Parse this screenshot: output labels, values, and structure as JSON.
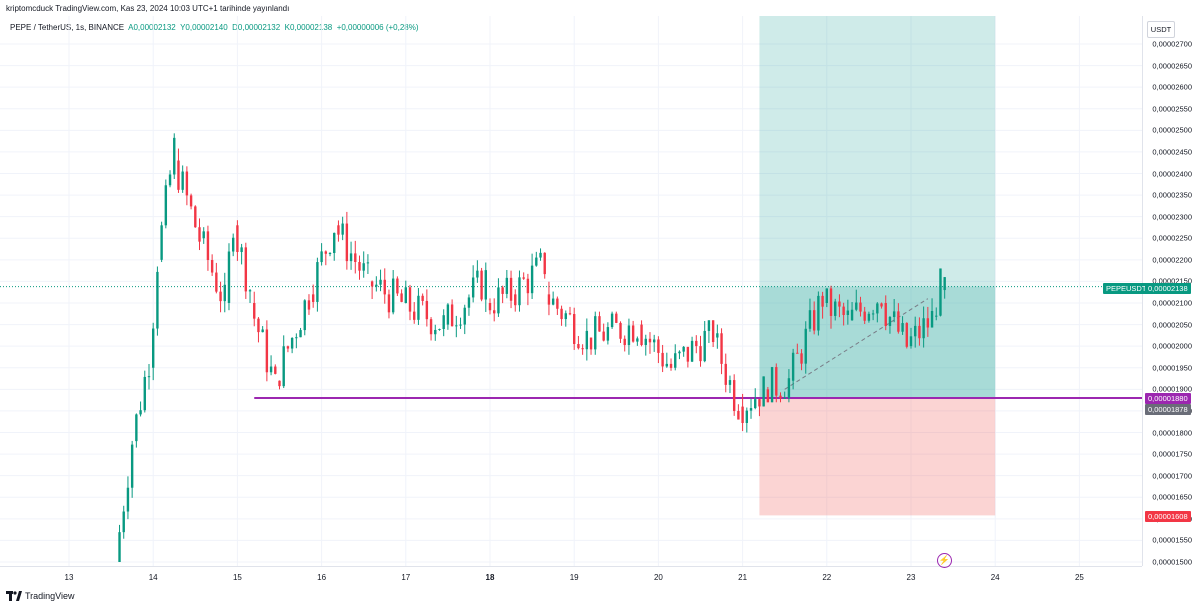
{
  "header": {
    "publish_line": "kriptomcduck TradingView.com, Kas 23, 2024 10:03 UTC+1 tarihinde yayınlandı"
  },
  "legend": {
    "symbol": "PEPE / TetherUS, 1s, BINANCE",
    "open": "A0,00002132",
    "high": "Y0,00002140",
    "low": "D0,00002132",
    "close": "K0,00002138",
    "change": "+0,00000006 (+0,28%)"
  },
  "price_axis": {
    "currency": "USDT",
    "ticks": [
      "0,00002700",
      "0,00002650",
      "0,00002600",
      "0,00002550",
      "0,00002500",
      "0,00002450",
      "0,00002400",
      "0,00002350",
      "0,00002300",
      "0,00002250",
      "0,00002200",
      "0,00002150",
      "0,00002100",
      "0,00002050",
      "0,00002000",
      "0,00001950",
      "0,00001900",
      "0,00001850",
      "0,00001800",
      "0,00001750",
      "0,00001700",
      "0,00001650",
      "0,00001600",
      "0,00001550",
      "0,00001500"
    ],
    "labels": {
      "symbol_tag": "PEPEUSDT",
      "current_price": "0,00002138",
      "line_price": "0,00001880",
      "cursor_price": "0,00001878",
      "stop_price": "0,00001608"
    }
  },
  "time_axis": {
    "labels": [
      "13",
      "14",
      "15",
      "16",
      "17",
      "18",
      "19",
      "20",
      "21",
      "22",
      "23",
      "24",
      "25"
    ],
    "bold_label": "18"
  },
  "colors": {
    "up": "#089981",
    "down": "#f23645",
    "profit_zone": "#26a69a",
    "loss_zone": "#ef5350",
    "support_line": "#9c27b0",
    "current_price": "#089981"
  },
  "footer": {
    "brand": "TradingView"
  },
  "chart_data": {
    "type": "candlestick",
    "symbol": "PEPE / TetherUS",
    "interval": "1s",
    "exchange": "BINANCE",
    "x_range_days": [
      "12",
      "25"
    ],
    "ylim": [
      1.5e-05,
      2.7e-05
    ],
    "last_close": 2.138e-05,
    "support_level": 1.88e-05,
    "position": {
      "entry": 2.138e-05,
      "target": 2.7e-05,
      "stop": 1.608e-05,
      "start_day": 21.2,
      "end_day": 24.0
    },
    "series": [
      {
        "day": 13.6,
        "open": 1.5e-05,
        "close": 1.78e-05,
        "high": 1.8e-05,
        "low": 1.5e-05
      },
      {
        "day": 13.8,
        "open": 1.78e-05,
        "close": 1.98e-05,
        "high": 2e-05,
        "low": 1.76e-05
      },
      {
        "day": 14.0,
        "open": 1.95e-05,
        "close": 2.2e-05,
        "high": 2.25e-05,
        "low": 1.8e-05
      },
      {
        "day": 14.1,
        "open": 2.2e-05,
        "close": 2.47e-05,
        "high": 2.6e-05,
        "low": 2.15e-05
      },
      {
        "day": 14.3,
        "open": 2.43e-05,
        "close": 2.25e-05,
        "high": 2.48e-05,
        "low": 2.2e-05
      },
      {
        "day": 14.6,
        "open": 2.25e-05,
        "close": 2.1e-05,
        "high": 2.35e-05,
        "low": 2.02e-05
      },
      {
        "day": 14.9,
        "open": 2.1e-05,
        "close": 2.3e-05,
        "high": 2.35e-05,
        "low": 2.05e-05
      },
      {
        "day": 15.0,
        "open": 2.28e-05,
        "close": 2.15e-05,
        "high": 2.32e-05,
        "low": 2.1e-05
      },
      {
        "day": 15.2,
        "open": 2.1e-05,
        "close": 1.9e-05,
        "high": 2.15e-05,
        "low": 1.88e-05
      },
      {
        "day": 15.5,
        "open": 1.92e-05,
        "close": 2.12e-05,
        "high": 2.2e-05,
        "low": 1.9e-05
      },
      {
        "day": 15.9,
        "open": 2.12e-05,
        "close": 2.28e-05,
        "high": 2.4e-05,
        "low": 2.08e-05
      },
      {
        "day": 16.2,
        "open": 2.28e-05,
        "close": 2.15e-05,
        "high": 2.32e-05,
        "low": 2.12e-05
      },
      {
        "day": 16.6,
        "open": 2.15e-05,
        "close": 2.1e-05,
        "high": 2.2e-05,
        "low": 1.95e-05
      },
      {
        "day": 17.0,
        "open": 2.1e-05,
        "close": 2.05e-05,
        "high": 2.18e-05,
        "low": 2e-05
      },
      {
        "day": 17.5,
        "open": 2.05e-05,
        "close": 2.18e-05,
        "high": 2.22e-05,
        "low": 2e-05
      },
      {
        "day": 18.0,
        "open": 2.1e-05,
        "close": 2.12e-05,
        "high": 2.18e-05,
        "low": 2.05e-05
      },
      {
        "day": 18.3,
        "open": 2.12e-05,
        "close": 2.22e-05,
        "high": 2.28e-05,
        "low": 2.08e-05
      },
      {
        "day": 18.7,
        "open": 2.12e-05,
        "close": 2.02e-05,
        "high": 2.15e-05,
        "low": 1.96e-05
      },
      {
        "day": 19.2,
        "open": 2.02e-05,
        "close": 2.05e-05,
        "high": 2.08e-05,
        "low": 1.98e-05
      },
      {
        "day": 19.8,
        "open": 2.05e-05,
        "close": 1.95e-05,
        "high": 2.1e-05,
        "low": 1.9e-05
      },
      {
        "day": 20.2,
        "open": 1.95e-05,
        "close": 2.04e-05,
        "high": 2.06e-05,
        "low": 1.88e-05
      },
      {
        "day": 20.7,
        "open": 2.02e-05,
        "close": 1.86e-05,
        "high": 2.05e-05,
        "low": 1.83e-05
      },
      {
        "day": 21.0,
        "open": 1.86e-05,
        "close": 1.9e-05,
        "high": 1.93e-05,
        "low": 1.8e-05
      },
      {
        "day": 21.3,
        "open": 1.9e-05,
        "close": 1.92e-05,
        "high": 1.96e-05,
        "low": 1.87e-05
      },
      {
        "day": 21.6,
        "open": 1.92e-05,
        "close": 2.12e-05,
        "high": 2.16e-05,
        "low": 1.9e-05
      },
      {
        "day": 22.0,
        "open": 2.1e-05,
        "close": 2.06e-05,
        "high": 2.14e-05,
        "low": 2e-05
      },
      {
        "day": 22.3,
        "open": 2.06e-05,
        "close": 2.13e-05,
        "high": 2.18e-05,
        "low": 2.04e-05
      },
      {
        "day": 22.7,
        "open": 2.1e-05,
        "close": 2e-05,
        "high": 2.12e-05,
        "low": 1.97e-05
      },
      {
        "day": 23.0,
        "open": 2e-05,
        "close": 2.06e-05,
        "high": 2.12e-05,
        "low": 1.97e-05
      },
      {
        "day": 23.3,
        "open": 2.07e-05,
        "close": 2.15e-05,
        "high": 2.18e-05,
        "low": 2.06e-05
      },
      {
        "day": 23.4,
        "open": 2.13e-05,
        "close": 2.14e-05,
        "high": 2.16e-05,
        "low": 2.11e-05
      }
    ]
  }
}
